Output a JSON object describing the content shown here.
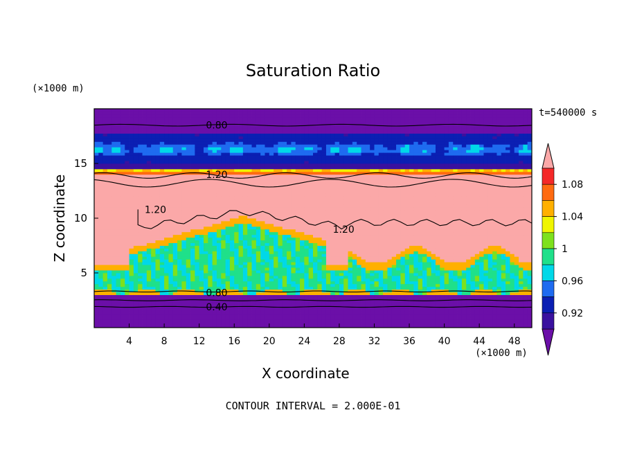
{
  "chart_data": {
    "type": "heatmap",
    "title": "Saturation Ratio",
    "xlabel": "X coordinate",
    "ylabel": "Z coordinate",
    "x_unit": "(×1000 m)",
    "y_unit": "(×1000 m)",
    "time_label": "t=540000 s",
    "footer": "CONTOUR INTERVAL = 2.000E-01",
    "xlim": [
      0,
      50
    ],
    "ylim": [
      0,
      20
    ],
    "x_ticks": [
      4,
      8,
      12,
      16,
      20,
      24,
      28,
      32,
      36,
      40,
      44,
      48
    ],
    "y_ticks": [
      5,
      10,
      15
    ],
    "x_tick_labels": [
      "4",
      "8",
      "12",
      "16",
      "20",
      "24",
      "28",
      "32",
      "36",
      "40",
      "44",
      "48"
    ],
    "y_tick_labels": [
      "5",
      "10",
      "15"
    ],
    "colorbar": {
      "labels": [
        "1.08",
        "1.04",
        "1",
        "0.96",
        "0.92"
      ],
      "label_values": [
        1.08,
        1.04,
        1.0,
        0.96,
        0.92
      ],
      "levels": [
        0.92,
        0.94,
        0.96,
        0.98,
        1.0,
        1.02,
        1.04,
        1.06,
        1.08,
        1.1
      ],
      "colors": [
        "#6b0fa8",
        "#3a119f",
        "#0b1fb3",
        "#1e6bf0",
        "#00d8e8",
        "#1fe08a",
        "#7ee11d",
        "#f0f500",
        "#ffb000",
        "#ff6a10",
        "#f42828",
        "#fba8a8"
      ]
    },
    "contour_labels": [
      {
        "text": "0.80",
        "x": 14.0,
        "z": 18.5
      },
      {
        "text": "1.20",
        "x": 14.0,
        "z": 14.0
      },
      {
        "text": "1.20",
        "x": 7.0,
        "z": 10.8
      },
      {
        "text": "1.20",
        "x": 28.5,
        "z": 9.0
      },
      {
        "text": "0.80",
        "x": 14.0,
        "z": 3.2
      },
      {
        "text": "0.40",
        "x": 14.0,
        "z": 1.9
      }
    ]
  }
}
